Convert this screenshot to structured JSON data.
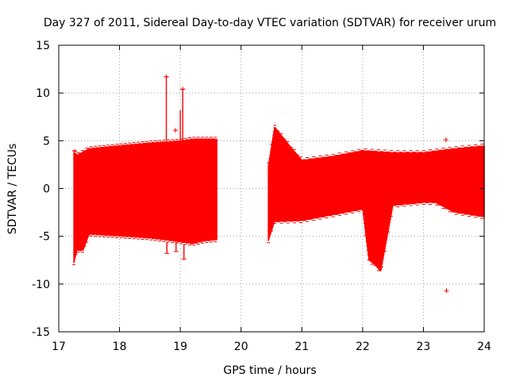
{
  "chart_data": {
    "type": "scatter",
    "title": "Day 327 of 2011, Sidereal Day-to-day VTEC variation (SDTVAR) for receiver urum",
    "xlabel": "GPS time / hours",
    "ylabel": "SDTVAR / TECUs",
    "xlim": [
      17,
      24
    ],
    "ylim": [
      -15,
      15
    ],
    "x_ticks": [
      17,
      18,
      19,
      20,
      21,
      22,
      23,
      24
    ],
    "y_ticks": [
      -15,
      -10,
      -5,
      0,
      5,
      10,
      15
    ],
    "x_tick_labels": [
      "17",
      "18",
      "19",
      "20",
      "21",
      "22",
      "23",
      "24"
    ],
    "y_tick_labels": [
      "-15",
      "-10",
      "-5",
      "0",
      "5",
      "10",
      "15"
    ],
    "grid": true,
    "series_color": "#ff0000",
    "series": [
      {
        "name": "SDTVAR segment 1 upper envelope",
        "x": [
          17.25,
          17.3,
          17.5,
          18.0,
          18.5,
          19.0,
          19.2,
          19.4,
          19.6
        ],
        "y": [
          3.8,
          3.5,
          4.2,
          4.5,
          4.8,
          5.0,
          5.2,
          5.2,
          5.2
        ]
      },
      {
        "name": "SDTVAR segment 1 lower envelope",
        "x": [
          17.25,
          17.3,
          17.4,
          17.5,
          18.0,
          18.5,
          19.0,
          19.2,
          19.4,
          19.6
        ],
        "y": [
          -7.8,
          -6.5,
          -6.5,
          -4.8,
          -5.0,
          -5.2,
          -5.6,
          -5.8,
          -5.5,
          -5.4
        ]
      },
      {
        "name": "SDTVAR segment 2 upper envelope",
        "x": [
          20.45,
          20.55,
          20.8,
          21.0,
          21.5,
          22.0,
          22.5,
          23.0,
          23.5,
          24.0
        ],
        "y": [
          2.5,
          6.5,
          4.5,
          3.0,
          3.4,
          4.0,
          3.8,
          3.8,
          4.2,
          4.5
        ]
      },
      {
        "name": "SDTVAR segment 2 lower envelope",
        "x": [
          20.45,
          20.55,
          21.0,
          21.5,
          22.0,
          22.1,
          22.2,
          22.3,
          22.5,
          23.0,
          23.2,
          23.5,
          24.0
        ],
        "y": [
          -5.5,
          -3.5,
          -3.4,
          -2.8,
          -2.2,
          -7.5,
          -8.0,
          -8.7,
          -1.8,
          -1.5,
          -1.5,
          -2.5,
          -3.0
        ]
      }
    ],
    "outliers": [
      {
        "x": 18.77,
        "y": 11.7
      },
      {
        "x": 19.04,
        "y": 10.4
      },
      {
        "x": 18.92,
        "y": 6.1
      },
      {
        "x": 23.37,
        "y": 5.1
      },
      {
        "x": 23.38,
        "y": -10.7
      },
      {
        "x": 17.27,
        "y": 3.9
      }
    ]
  }
}
